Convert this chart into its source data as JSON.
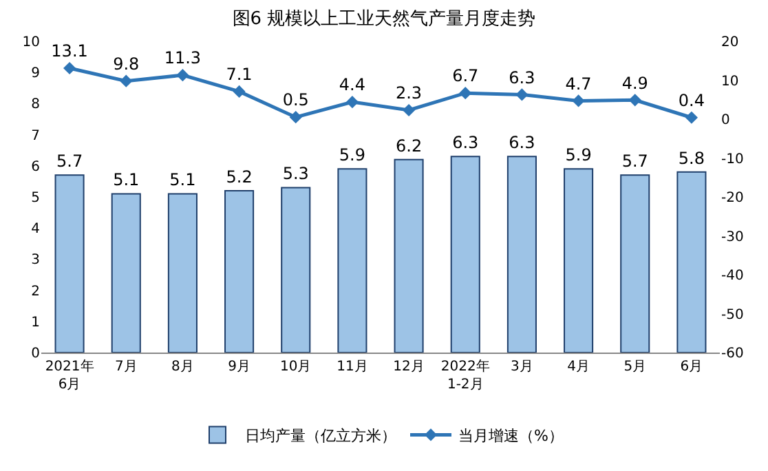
{
  "chart_data": {
    "type": "bar",
    "title": "图6 规模以上工业天然气产量月度走势",
    "categories": [
      "2021年\n6月",
      "7月",
      "8月",
      "9月",
      "10月",
      "11月",
      "12月",
      "2022年\n1-2月",
      "3月",
      "4月",
      "5月",
      "6月"
    ],
    "series": [
      {
        "name": "日均产量（亿立方米）",
        "color": "#9dc3e6",
        "values": [
          5.7,
          5.1,
          5.1,
          5.2,
          5.3,
          5.9,
          6.2,
          6.3,
          6.3,
          5.9,
          5.7,
          5.8
        ]
      },
      {
        "name": "当月增速（%）",
        "type": "line",
        "axis": "y2",
        "color": "#2e75b6",
        "values": [
          13.1,
          9.8,
          11.3,
          7.1,
          0.5,
          4.4,
          2.3,
          6.7,
          6.3,
          4.7,
          4.9,
          0.4
        ]
      }
    ],
    "ylim": [
      0,
      10
    ],
    "yticks": [
      0,
      1,
      2,
      3,
      4,
      5,
      6,
      7,
      8,
      9,
      10
    ],
    "y2lim": [
      -60,
      20
    ],
    "y2ticks": [
      -60,
      -50,
      -40,
      -30,
      -20,
      -10,
      0,
      10,
      20
    ],
    "data_labels": true,
    "legend": "bottom",
    "marker": "diamond"
  }
}
